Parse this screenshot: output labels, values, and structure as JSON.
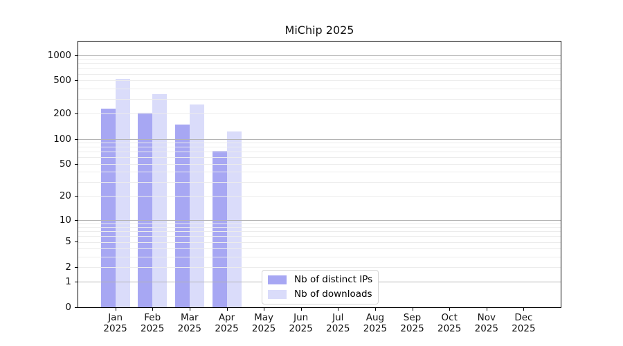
{
  "colors": {
    "background": "#ffffff",
    "axis": "#000000",
    "grid_major": "#b3b3b3",
    "grid_minor": "#ececec",
    "legend_border": "#d4d4d4",
    "bar_distinct_ips": "#a7a7f3",
    "bar_downloads": "#dadcfa"
  },
  "chart_data": {
    "type": "bar",
    "title": "MiChip 2025",
    "months": [
      "Jan",
      "Feb",
      "Mar",
      "Apr",
      "May",
      "Jun",
      "Jul",
      "Aug",
      "Sep",
      "Oct",
      "Nov",
      "Dec"
    ],
    "year": "2025",
    "categories": [
      "Jan 2025",
      "Feb 2025",
      "Mar 2025",
      "Apr 2025",
      "May 2025",
      "Jun 2025",
      "Jul 2025",
      "Aug 2025",
      "Sep 2025",
      "Oct 2025",
      "Nov 2025",
      "Dec 2025"
    ],
    "series": [
      {
        "name": "Nb of distinct IPs",
        "color": "#a7a7f3",
        "values": [
          230,
          206,
          147,
          72,
          null,
          null,
          null,
          null,
          null,
          null,
          null,
          null
        ]
      },
      {
        "name": "Nb of downloads",
        "color": "#dadcfa",
        "values": [
          520,
          344,
          257,
          122,
          null,
          null,
          null,
          null,
          null,
          null,
          null,
          null
        ]
      }
    ],
    "xlabel": "",
    "ylabel": "",
    "yscale": "log1p (symlog-like: position ~ ln(1+v))",
    "yticks": [
      0,
      1,
      2,
      5,
      10,
      20,
      50,
      100,
      200,
      500,
      1000
    ],
    "major_grid_values": [
      1,
      10,
      100,
      1000
    ],
    "ylim": [
      0,
      1450
    ],
    "grid": "horizontal major + log-decade minor gridlines",
    "legend_position": "lower center"
  }
}
